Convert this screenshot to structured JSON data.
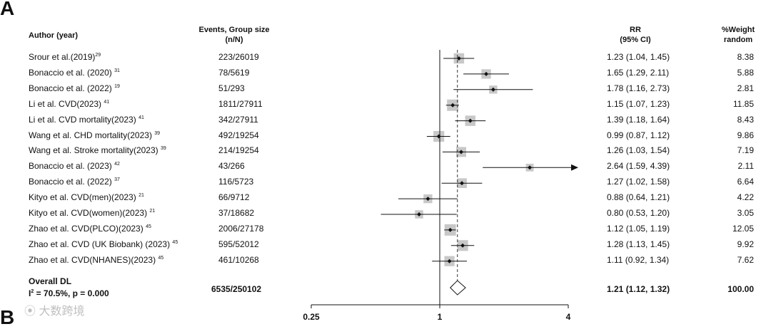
{
  "panel_letter": "A",
  "watermark": "大数跨境",
  "headers": {
    "author": "Author (year)",
    "events_line1": "Events, Group size",
    "events_line2": "(n/N)",
    "rr_line1": "RR",
    "rr_line2": "(95% CI)",
    "weight_line1": "%Weight",
    "weight_line2": "random"
  },
  "chart_data": {
    "type": "forest",
    "x_scale": "log",
    "xlim": [
      0.25,
      4
    ],
    "ticks": [
      "0.25",
      "1",
      "4"
    ],
    "null_value": 1,
    "pooled_reference": 1.21,
    "studies": [
      {
        "author": "Srour et al.(2019)",
        "ref": "29",
        "events": "223/26019",
        "rr": 1.23,
        "lo": 1.04,
        "hi": 1.45,
        "rr_text": "1.23 (1.04, 1.45)",
        "weight": "8.38"
      },
      {
        "author": "Bonaccio et al. (2020) ",
        "ref": "31",
        "events": "78/5619",
        "rr": 1.65,
        "lo": 1.29,
        "hi": 2.11,
        "rr_text": "1.65 (1.29, 2.11)",
        "weight": "5.88"
      },
      {
        "author": "Bonaccio et al. (2022) ",
        "ref": "19",
        "events": "51/293",
        "rr": 1.78,
        "lo": 1.16,
        "hi": 2.73,
        "rr_text": "1.78 (1.16, 2.73)",
        "weight": "2.81"
      },
      {
        "author": "Li et al. CVD(2023) ",
        "ref": "41",
        "events": "1811/27911",
        "rr": 1.15,
        "lo": 1.07,
        "hi": 1.23,
        "rr_text": "1.15 (1.07, 1.23)",
        "weight": "11.85"
      },
      {
        "author": "Li et al. CVD mortality(2023) ",
        "ref": "41",
        "events": "342/27911",
        "rr": 1.39,
        "lo": 1.18,
        "hi": 1.64,
        "rr_text": "1.39 (1.18, 1.64)",
        "weight": "8.43"
      },
      {
        "author": "Wang et al. CHD mortality(2023) ",
        "ref": "39",
        "events": "492/19254",
        "rr": 0.99,
        "lo": 0.87,
        "hi": 1.12,
        "rr_text": "0.99 (0.87, 1.12)",
        "weight": "9.86"
      },
      {
        "author": "Wang et al. Stroke mortality(2023) ",
        "ref": "39",
        "events": "214/19254",
        "rr": 1.26,
        "lo": 1.03,
        "hi": 1.54,
        "rr_text": "1.26 (1.03, 1.54)",
        "weight": "7.19"
      },
      {
        "author": "Bonaccio et al. (2023) ",
        "ref": "42",
        "events": "43/266",
        "rr": 2.64,
        "lo": 1.59,
        "hi": 4.39,
        "rr_text": "2.64 (1.59, 4.39)",
        "weight": "2.11"
      },
      {
        "author": "Bonaccio et al. (2022) ",
        "ref": "37",
        "events": "116/5723",
        "rr": 1.27,
        "lo": 1.02,
        "hi": 1.58,
        "rr_text": "1.27 (1.02, 1.58)",
        "weight": "6.64"
      },
      {
        "author": "Kityo et al. CVD(men)(2023) ",
        "ref": "21",
        "events": "66/9712",
        "rr": 0.88,
        "lo": 0.64,
        "hi": 1.21,
        "rr_text": "0.88 (0.64, 1.21)",
        "weight": "4.22"
      },
      {
        "author": "Kityo et al. CVD(women)(2023) ",
        "ref": "21",
        "events": "37/18682",
        "rr": 0.8,
        "lo": 0.53,
        "hi": 1.2,
        "rr_text": "0.80 (0.53, 1.20)",
        "weight": "3.05"
      },
      {
        "author": "Zhao et al. CVD(PLCO)(2023) ",
        "ref": "45",
        "events": "2006/27178",
        "rr": 1.12,
        "lo": 1.05,
        "hi": 1.19,
        "rr_text": "1.12 (1.05, 1.19)",
        "weight": "12.05"
      },
      {
        "author": "Zhao et al. CVD (UK Biobank) (2023) ",
        "ref": "45",
        "events": "595/52012",
        "rr": 1.28,
        "lo": 1.13,
        "hi": 1.45,
        "rr_text": "1.28 (1.13, 1.45)",
        "weight": "9.92"
      },
      {
        "author": "Zhao et al. CVD(NHANES)(2023) ",
        "ref": "45",
        "events": "461/10268",
        "rr": 1.11,
        "lo": 0.92,
        "hi": 1.34,
        "rr_text": "1.11 (0.92, 1.34)",
        "weight": "7.62"
      }
    ],
    "overall": {
      "label": "Overall DL",
      "heterogeneity": "= 70.5%, p = 0.000",
      "heterogeneity_symbol": "I",
      "heterogeneity_exp": "2",
      "events": "6535/250102",
      "rr": 1.21,
      "lo": 1.12,
      "hi": 1.32,
      "rr_text": "1.21 (1.12, 1.32)",
      "weight": "100.00"
    }
  }
}
